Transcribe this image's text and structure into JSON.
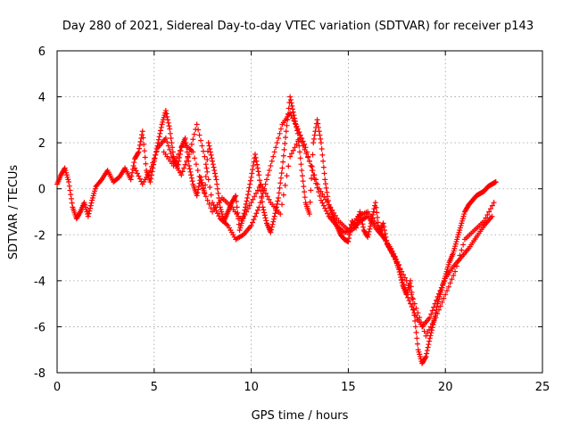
{
  "chart_data": {
    "type": "scatter",
    "title": "Day 280 of 2021, Sidereal Day-to-day VTEC variation (SDTVAR) for receiver p143",
    "xlabel": "GPS time / hours",
    "ylabel": "SDTVAR / TECUs",
    "xlim": [
      0,
      25
    ],
    "ylim": [
      -8,
      6
    ],
    "xticks": [
      "0",
      "5",
      "10",
      "15",
      "20",
      "25"
    ],
    "yticks": [
      "-8",
      "-6",
      "-4",
      "-2",
      "0",
      "2",
      "4",
      "6"
    ],
    "grid": true,
    "marker": "+",
    "color": "#ff0000",
    "series": [
      {
        "name": "p143",
        "x": [
          0.0,
          0.2,
          0.4,
          0.6,
          0.8,
          1.0,
          1.2,
          1.4,
          1.6,
          1.8,
          2.0,
          2.3,
          2.6,
          2.9,
          3.2,
          3.5,
          3.8,
          4.0,
          4.2,
          4.4,
          4.6,
          4.8,
          5.0,
          5.2,
          5.4,
          5.6,
          5.8,
          6.0,
          6.2,
          6.4,
          6.6,
          6.8,
          7.0,
          7.2,
          7.4,
          7.6,
          7.8,
          8.0,
          8.2,
          8.4,
          8.6,
          8.8,
          9.0,
          9.2,
          9.4,
          9.6,
          9.8,
          10.0,
          10.2,
          10.4,
          10.6,
          10.8,
          11.0,
          11.2,
          11.4,
          11.6,
          11.8,
          12.0,
          12.2,
          12.4,
          12.6,
          12.8,
          13.0,
          13.2,
          13.4,
          13.6,
          13.8,
          14.0,
          14.2,
          14.4,
          14.6,
          14.8,
          15.0,
          15.2,
          15.4,
          15.6,
          15.8,
          16.0,
          16.2,
          16.4,
          16.6,
          16.8,
          17.0,
          17.2,
          17.4,
          17.6,
          17.8,
          18.0,
          18.2,
          18.4,
          18.6,
          18.8,
          19.0,
          19.2,
          19.4,
          19.6,
          19.8,
          20.0,
          20.2,
          20.4,
          20.6,
          20.8,
          21.0,
          21.2,
          21.4,
          21.6,
          21.8,
          22.0,
          22.2,
          22.4,
          22.6
        ],
        "y": [
          0.2,
          0.6,
          0.9,
          0.3,
          -0.8,
          -1.3,
          -1.0,
          -0.6,
          -1.2,
          -0.5,
          0.1,
          0.4,
          0.8,
          0.3,
          0.5,
          0.9,
          0.4,
          1.3,
          1.6,
          2.5,
          0.8,
          0.3,
          1.2,
          2.0,
          2.8,
          3.4,
          2.6,
          1.4,
          0.9,
          1.8,
          2.2,
          1.0,
          0.2,
          -0.3,
          0.5,
          -0.2,
          2.0,
          1.2,
          0.4,
          -0.8,
          -1.4,
          -1.0,
          -0.6,
          -0.3,
          -1.8,
          -1.2,
          -0.4,
          0.5,
          1.5,
          0.6,
          -0.8,
          -1.5,
          -1.9,
          -1.2,
          -0.4,
          0.9,
          2.5,
          4.0,
          3.2,
          2.4,
          0.8,
          -0.6,
          -1.1,
          2.0,
          3.0,
          2.0,
          0.4,
          -0.7,
          -1.2,
          -1.6,
          -2.0,
          -2.2,
          -2.3,
          -1.4,
          -1.7,
          -1.0,
          -1.8,
          -2.1,
          -1.4,
          -0.6,
          -1.9,
          -1.5,
          -2.4,
          -2.7,
          -3.0,
          -3.5,
          -4.2,
          -4.6,
          -4.0,
          -5.5,
          -7.0,
          -7.6,
          -7.3,
          -6.5,
          -5.8,
          -5.0,
          -4.4,
          -3.8,
          -3.2,
          -2.8,
          -2.2,
          -1.6,
          -1.0,
          -0.7,
          -0.5,
          -0.3,
          -0.2,
          -0.1,
          0.1,
          0.2,
          0.3
        ]
      },
      {
        "name": "p143",
        "x": [
          4.0,
          4.4,
          4.8,
          5.2,
          5.6,
          6.0,
          6.4,
          6.8,
          7.2,
          7.6,
          8.0,
          8.4,
          8.8,
          9.2,
          9.6,
          10.0,
          10.4,
          10.8,
          11.2,
          11.6,
          12.0,
          12.4,
          12.8,
          13.2,
          13.6,
          14.0,
          14.4,
          14.8,
          15.2,
          15.6,
          16.0,
          16.4,
          16.8,
          17.2,
          17.6,
          18.0,
          18.4,
          18.8,
          19.2,
          19.6,
          20.0,
          20.4,
          20.8,
          21.2,
          21.6,
          22.0,
          22.4
        ],
        "y": [
          0.9,
          0.2,
          0.8,
          1.8,
          2.2,
          1.2,
          0.6,
          1.5,
          2.8,
          1.4,
          -0.6,
          -1.3,
          -1.6,
          -2.2,
          -2.0,
          -1.6,
          -0.8,
          0.4,
          1.6,
          2.8,
          3.3,
          2.6,
          1.8,
          0.6,
          -0.5,
          -1.2,
          -1.6,
          -1.9,
          -1.8,
          -1.4,
          -1.2,
          -1.7,
          -2.1,
          -2.6,
          -3.3,
          -4.6,
          -5.4,
          -6.0,
          -5.6,
          -4.7,
          -3.9,
          -3.4,
          -3.0,
          -2.6,
          -2.1,
          -1.6,
          -1.2
        ]
      },
      {
        "name": "p143",
        "x": [
          5.5,
          6.0,
          6.5,
          7.0,
          7.5,
          8.0,
          8.5,
          9.0,
          9.5,
          10.0,
          10.5,
          11.0,
          11.5,
          12.0,
          12.5,
          13.0,
          13.5,
          14.0,
          14.5,
          15.0,
          15.5,
          16.0,
          16.5,
          17.0,
          17.5,
          18.0,
          18.5,
          19.0,
          19.5,
          20.0,
          20.5,
          21.0,
          21.5,
          22.0,
          22.5
        ],
        "y": [
          1.6,
          1.0,
          2.0,
          1.6,
          0.0,
          -1.0,
          -0.4,
          -0.8,
          -1.4,
          -0.6,
          0.2,
          -0.6,
          -1.1,
          1.4,
          2.2,
          1.2,
          0.0,
          -0.7,
          -1.4,
          -1.8,
          -1.2,
          -1.0,
          -1.6,
          -2.4,
          -3.2,
          -4.0,
          -5.2,
          -6.4,
          -5.6,
          -4.6,
          -3.6,
          -2.2,
          -1.8,
          -1.4,
          -0.6
        ]
      }
    ]
  }
}
